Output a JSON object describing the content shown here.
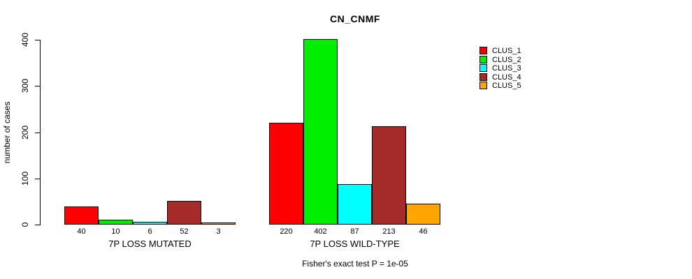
{
  "title": "CN_CNMF",
  "chart_data": {
    "type": "bar",
    "title": "CN_CNMF",
    "xlabel": "",
    "ylabel": "number of cases",
    "ylim": [
      0,
      400
    ],
    "yticks": [
      0,
      100,
      200,
      300,
      400
    ],
    "grid": false,
    "legend_position": "top-right",
    "categories": [
      "7P LOSS MUTATED",
      "7P LOSS WILD-TYPE"
    ],
    "series": [
      {
        "name": "CLUS_1",
        "color": "#FF0000",
        "values": [
          40,
          220
        ]
      },
      {
        "name": "CLUS_2",
        "color": "#00EE00",
        "values": [
          10,
          402
        ]
      },
      {
        "name": "CLUS_3",
        "color": "#00FFFF",
        "values": [
          6,
          87
        ]
      },
      {
        "name": "CLUS_4",
        "color": "#A52A2A",
        "values": [
          52,
          213
        ]
      },
      {
        "name": "CLUS_5",
        "color": "#FFA500",
        "values": [
          3,
          46
        ]
      }
    ],
    "bar_value_labels": [
      [
        40,
        10,
        6,
        52,
        3
      ],
      [
        220,
        402,
        87,
        213,
        46
      ]
    ],
    "annotation": "Fisher's exact test P = 1e-05"
  }
}
